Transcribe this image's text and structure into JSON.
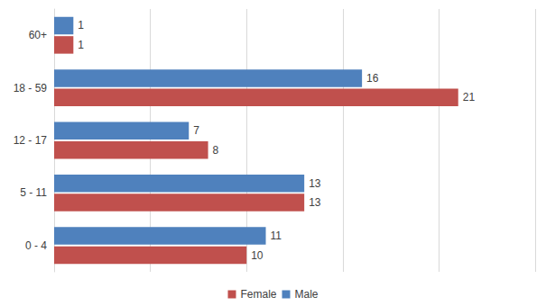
{
  "chart_data": {
    "type": "bar",
    "orientation": "horizontal",
    "categories": [
      "0 - 4",
      "5 - 11",
      "12 - 17",
      "18 - 59",
      "60+"
    ],
    "series": [
      {
        "name": "Female",
        "color": "#c0504d",
        "values": [
          10,
          13,
          8,
          21,
          1
        ]
      },
      {
        "name": "Male",
        "color": "#4f81bd",
        "values": [
          11,
          13,
          7,
          16,
          1
        ]
      }
    ],
    "xlim": [
      0,
      25
    ],
    "xticks": [
      0,
      5,
      10,
      15,
      20,
      25
    ],
    "grid": true,
    "legend": "bottom",
    "data_labels": true,
    "tick_labels": "y"
  }
}
